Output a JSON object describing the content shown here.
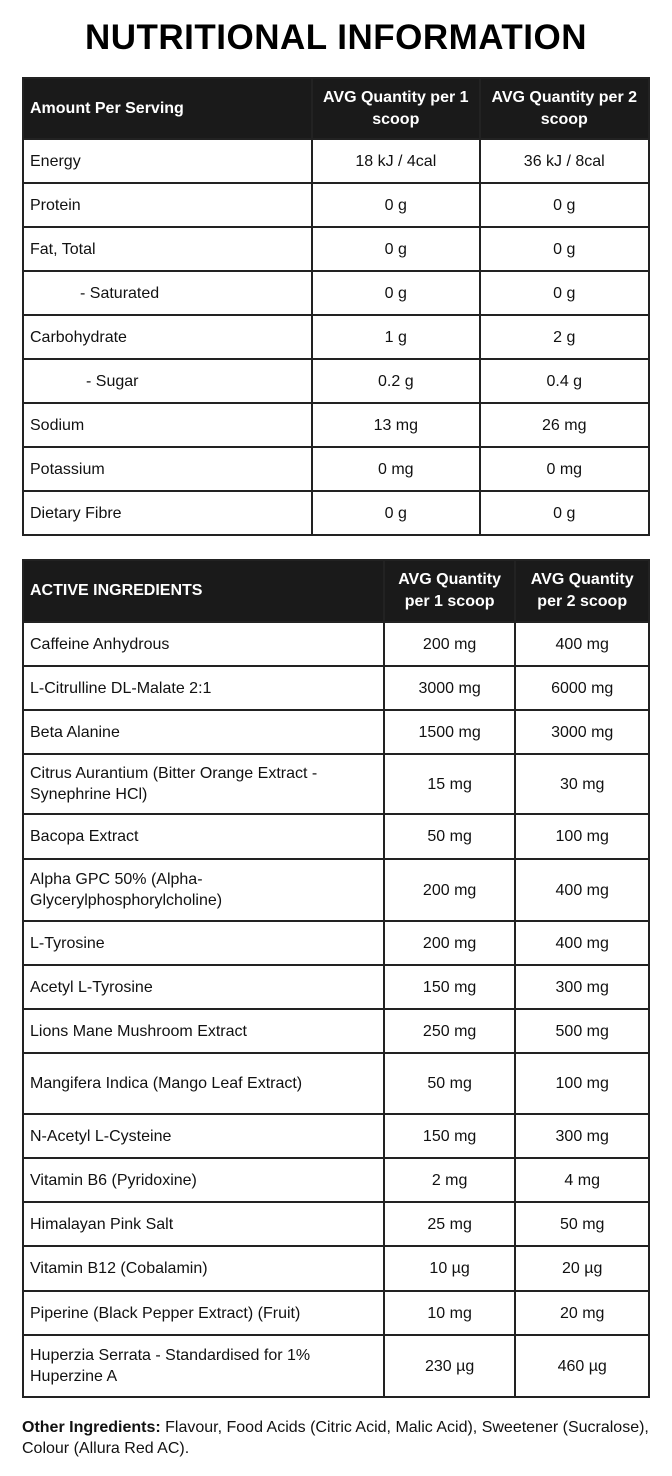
{
  "title": "NUTRITIONAL INFORMATION",
  "nutrition": {
    "headers": [
      "Amount Per Serving",
      "AVG Quantity per 1 scoop",
      "AVG Quantity per 2 scoop"
    ],
    "rows": [
      {
        "name": "Energy",
        "q1": "18 kJ / 4cal",
        "q2": "36 kJ / 8cal"
      },
      {
        "name": "Protein",
        "q1": "0 g",
        "q2": "0 g"
      },
      {
        "name": "Fat, Total",
        "q1": "0 g",
        "q2": "0 g"
      },
      {
        "name": "- Saturated",
        "q1": "0 g",
        "q2": "0 g",
        "sub": true
      },
      {
        "name": "Carbohydrate",
        "q1": "1 g",
        "q2": "2 g"
      },
      {
        "name": "- Sugar",
        "q1": "0.2 g",
        "q2": "0.4 g",
        "sub": true
      },
      {
        "name": "Sodium",
        "q1": "13 mg",
        "q2": "26 mg"
      },
      {
        "name": "Potassium",
        "q1": "0 mg",
        "q2": "0 mg"
      },
      {
        "name": "Dietary Fibre",
        "q1": "0 g",
        "q2": "0 g"
      }
    ]
  },
  "active": {
    "headers": [
      "ACTIVE INGREDIENTS",
      "AVG Quantity per 1 scoop",
      "AVG Quantity per 2 scoop"
    ],
    "rows": [
      {
        "name": "Caffeine Anhydrous",
        "q1": "200 mg",
        "q2": "400 mg"
      },
      {
        "name": "L-Citrulline DL-Malate 2:1",
        "q1": "3000 mg",
        "q2": "6000 mg"
      },
      {
        "name": "Beta Alanine",
        "q1": "1500 mg",
        "q2": "3000 mg"
      },
      {
        "name": "Citrus Aurantium (Bitter Orange Extract - Synephrine HCl)",
        "q1": "15 mg",
        "q2": "30 mg"
      },
      {
        "name": "Bacopa Extract",
        "q1": "50 mg",
        "q2": "100 mg"
      },
      {
        "name": "Alpha GPC 50% (Alpha-Glycerylphosphorylcholine)",
        "q1": "200 mg",
        "q2": "400 mg"
      },
      {
        "name": "L-Tyrosine",
        "q1": "200 mg",
        "q2": "400 mg"
      },
      {
        "name": "Acetyl L-Tyrosine",
        "q1": "150 mg",
        "q2": "300 mg"
      },
      {
        "name": "Lions Mane Mushroom Extract",
        "q1": "250 mg",
        "q2": "500 mg"
      },
      {
        "name": "Mangifera Indica (Mango Leaf Extract)",
        "q1": "50 mg",
        "q2": "100 mg"
      },
      {
        "name": "N-Acetyl L-Cysteine",
        "q1": "150 mg",
        "q2": "300 mg"
      },
      {
        "name": "Vitamin B6 (Pyridoxine)",
        "q1": "2 mg",
        "q2": "4 mg"
      },
      {
        "name": "Himalayan Pink Salt",
        "q1": "25 mg",
        "q2": "50 mg"
      },
      {
        "name": "Vitamin B12 (Cobalamin)",
        "q1": "10 µg",
        "q2": "20 µg"
      },
      {
        "name": "Piperine (Black Pepper Extract) (Fruit)",
        "q1": "10 mg",
        "q2": "20 mg"
      },
      {
        "name": "Huperzia Serrata - Standardised for 1% Huperzine A",
        "q1": "230 µg",
        "q2": "460 µg"
      }
    ]
  },
  "other": {
    "label": "Other Ingredients:",
    "text": "Flavour, Food Acids (Citric Acid, Malic Acid), Sweetener (Sucralose), Colour (Allura Red AC)."
  }
}
